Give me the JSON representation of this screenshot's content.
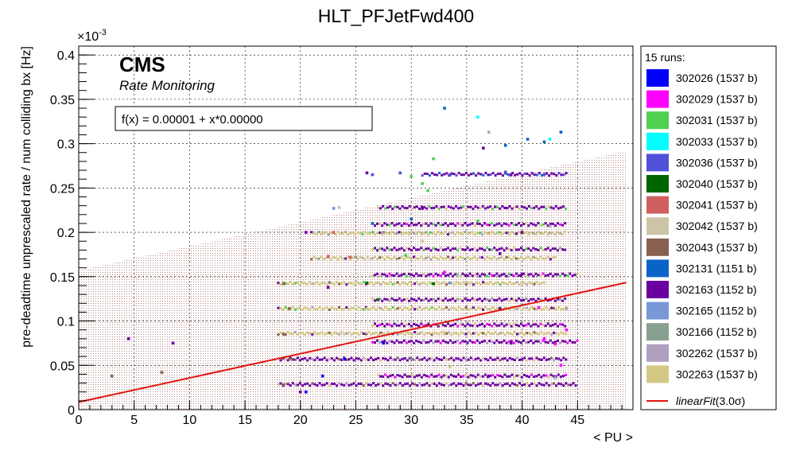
{
  "chart_data": {
    "type": "scatter",
    "title": "HLT_PFJetFwd400",
    "xlabel": "< PU >",
    "ylabel": "pre-deadtime unprescaled rate / num colliding bx [Hz]",
    "y_exponent": "×10",
    "y_exponent_power": "-3",
    "xlim": [
      0,
      50
    ],
    "ylim": [
      0,
      0.41
    ],
    "x_ticks": [
      "0",
      "5",
      "10",
      "15",
      "20",
      "25",
      "30",
      "35",
      "40",
      "45"
    ],
    "y_ticks": [
      "0",
      "0.05",
      "0.1",
      "0.15",
      "0.2",
      "0.25",
      "0.3",
      "0.35",
      "0.4"
    ],
    "grid": true,
    "brand": "CMS",
    "subtitle": "Rate Monitoring",
    "fit_label": "f(x) = 0.00001 + x*0.00000",
    "fit": {
      "intercept": 0.0085,
      "slope": 0.00273,
      "band_halfwidth": 0.1485,
      "color": "#e0150f"
    },
    "legend_title": "15 runs:",
    "legend_placement": "right",
    "series": [
      {
        "name": "302026 (1537 b)",
        "color": "#0000ff",
        "points": [
          [
            20.5,
            0.02
          ],
          [
            22.0,
            0.038
          ],
          [
            24.0,
            0.057
          ],
          [
            27.5,
            0.075
          ]
        ]
      },
      {
        "name": "302029 (1537 b)",
        "color": "#ff00ff",
        "points": [
          [
            43.0,
            0.074
          ],
          [
            42.0,
            0.08
          ],
          [
            44.0,
            0.09
          ],
          [
            41.5,
            0.115
          ],
          [
            43.5,
            0.05
          ],
          [
            33.0,
            0.155
          ]
        ]
      },
      {
        "name": "302031 (1537 b)",
        "color": "#4fd04f",
        "points": [
          [
            32.0,
            0.283
          ],
          [
            31.0,
            0.255
          ],
          [
            30.0,
            0.263
          ],
          [
            31.5,
            0.247
          ],
          [
            36.0,
            0.213
          ],
          [
            29.5,
            0.174
          ]
        ]
      },
      {
        "name": "302033 (1537 b)",
        "color": "#00ffff",
        "points": [
          [
            42.5,
            0.305
          ],
          [
            36.0,
            0.33
          ]
        ]
      },
      {
        "name": "302036 (1537 b)",
        "color": "#5050d8",
        "points": [
          [
            26.5,
            0.265
          ],
          [
            29.0,
            0.267
          ],
          [
            33.5,
            0.265
          ],
          [
            38.5,
            0.268
          ],
          [
            42.0,
            0.265
          ]
        ]
      },
      {
        "name": "302040 (1537 b)",
        "color": "#006400",
        "points": [
          [
            32.0,
            0.142
          ],
          [
            26.0,
            0.143
          ],
          [
            27.0,
            0.124
          ]
        ]
      },
      {
        "name": "302041 (1537 b)",
        "color": "#d06060",
        "points": [
          [
            23.0,
            0.2
          ],
          [
            22.5,
            0.173
          ],
          [
            24.5,
            0.172
          ]
        ]
      },
      {
        "name": "302042 (1537 b)",
        "color": "#cdc4a8",
        "points": [
          [
            23.5,
            0.228
          ],
          [
            22.0,
            0.2
          ],
          [
            25.0,
            0.145
          ],
          [
            28.0,
            0.085
          ]
        ]
      },
      {
        "name": "302043 (1537 b)",
        "color": "#886050",
        "points": [
          [
            18.5,
            0.142
          ],
          [
            19.0,
            0.114
          ],
          [
            18.5,
            0.085
          ],
          [
            19.0,
            0.057
          ],
          [
            18.5,
            0.028
          ],
          [
            3.0,
            0.038
          ],
          [
            7.5,
            0.042
          ]
        ]
      },
      {
        "name": "302131 (1151 b)",
        "color": "#0a64c8",
        "points": [
          [
            33.0,
            0.34
          ],
          [
            43.5,
            0.313
          ],
          [
            42.0,
            0.302
          ],
          [
            40.5,
            0.305
          ],
          [
            38.5,
            0.298
          ],
          [
            26.5,
            0.21
          ],
          [
            30.0,
            0.215
          ]
        ]
      },
      {
        "name": "302163 (1152 b)",
        "color": "#6a00a0",
        "points": [
          [
            36.5,
            0.295
          ],
          [
            26.0,
            0.267
          ],
          [
            39.0,
            0.265
          ],
          [
            31.0,
            0.227
          ],
          [
            40.0,
            0.2
          ],
          [
            38.0,
            0.176
          ],
          [
            40.0,
            0.153
          ],
          [
            38.0,
            0.114
          ],
          [
            39.0,
            0.075
          ],
          [
            37.0,
            0.038
          ],
          [
            20.5,
            0.2
          ],
          [
            4.5,
            0.08
          ],
          [
            8.5,
            0.075
          ],
          [
            20.0,
            0.02
          ],
          [
            22.5,
            0.138
          ]
        ]
      },
      {
        "name": "302165 (1152 b)",
        "color": "#7898d8",
        "points": [
          [
            23.0,
            0.227
          ],
          [
            33.5,
            0.143
          ],
          [
            40.0,
            0.118
          ]
        ]
      },
      {
        "name": "302166 (1152 b)",
        "color": "#88a090",
        "points": [
          [
            27.5,
            0.2
          ],
          [
            25.0,
            0.172
          ],
          [
            30.0,
            0.057
          ]
        ]
      },
      {
        "name": "302262 (1537 b)",
        "color": "#b0a0c0",
        "points": [
          [
            37.0,
            0.313
          ],
          [
            42.5,
            0.207
          ],
          [
            44.0,
            0.114
          ],
          [
            43.0,
            0.036
          ]
        ]
      },
      {
        "name": "302263 (1537 b)",
        "color": "#d2c884",
        "points": [
          [
            33.5,
            0.048
          ],
          [
            31.0,
            0.19
          ],
          [
            26.0,
            0.114
          ],
          [
            33.0,
            0.087
          ]
        ]
      }
    ],
    "bands": [
      {
        "y": 0.0285,
        "x0": 18.0,
        "x1": 45.0,
        "color": "#6a00a0",
        "alt": [
          "#d2c884",
          "#b0a0c0",
          "#886050"
        ]
      },
      {
        "y": 0.038,
        "x0": 27.0,
        "x1": 44.0,
        "color": "#6a00a0",
        "alt": [
          "#d2c884",
          "#ff00ff"
        ]
      },
      {
        "y": 0.057,
        "x0": 18.0,
        "x1": 44.0,
        "color": "#6a00a0",
        "alt": [
          "#d2c884",
          "#886050",
          "#b0a0c0"
        ]
      },
      {
        "y": 0.0765,
        "x0": 26.5,
        "x1": 45.0,
        "color": "#6a00a0",
        "alt": [
          "#ff00ff",
          "#b0a0c0"
        ]
      },
      {
        "y": 0.086,
        "x0": 18.0,
        "x1": 44.0,
        "color": "#d2c884",
        "alt": [
          "#886050",
          "#b0a0c0",
          "#6a00a0"
        ]
      },
      {
        "y": 0.0955,
        "x0": 26.5,
        "x1": 44.0,
        "color": "#6a00a0",
        "alt": [
          "#d2c884",
          "#ff00ff"
        ]
      },
      {
        "y": 0.114,
        "x0": 18.0,
        "x1": 44.0,
        "color": "#d2c884",
        "alt": [
          "#6a00a0",
          "#886050",
          "#b0a0c0",
          "#4fd04f"
        ]
      },
      {
        "y": 0.124,
        "x0": 26.5,
        "x1": 44.0,
        "color": "#6a00a0",
        "alt": [
          "#d2c884",
          "#88a090"
        ]
      },
      {
        "y": 0.1425,
        "x0": 18.0,
        "x1": 42.0,
        "color": "#d2c884",
        "alt": [
          "#6a00a0",
          "#886050",
          "#b0a0c0",
          "#4fd04f"
        ]
      },
      {
        "y": 0.152,
        "x0": 26.5,
        "x1": 45.0,
        "color": "#6a00a0",
        "alt": [
          "#d2c884",
          "#ff00ff",
          "#4fd04f"
        ]
      },
      {
        "y": 0.171,
        "x0": 21.0,
        "x1": 43.0,
        "color": "#d2c884",
        "alt": [
          "#886050",
          "#b0a0c0",
          "#6a00a0",
          "#88a090"
        ]
      },
      {
        "y": 0.181,
        "x0": 26.5,
        "x1": 44.0,
        "color": "#6a00a0",
        "alt": [
          "#d2c884",
          "#4fd04f"
        ]
      },
      {
        "y": 0.199,
        "x0": 21.0,
        "x1": 44.0,
        "color": "#d2c884",
        "alt": [
          "#6a00a0",
          "#4fd04f",
          "#b0a0c0",
          "#88a090"
        ]
      },
      {
        "y": 0.209,
        "x0": 26.5,
        "x1": 44.0,
        "color": "#6a00a0",
        "alt": [
          "#d2c884",
          "#4fd04f",
          "#ff00ff"
        ]
      },
      {
        "y": 0.228,
        "x0": 27.0,
        "x1": 44.0,
        "color": "#6a00a0",
        "alt": [
          "#d2c884",
          "#4fd04f"
        ]
      },
      {
        "y": 0.2655,
        "x0": 31.0,
        "x1": 44.0,
        "color": "#6a00a0",
        "alt": [
          "#5050d8",
          "#0a64c8"
        ]
      }
    ]
  }
}
